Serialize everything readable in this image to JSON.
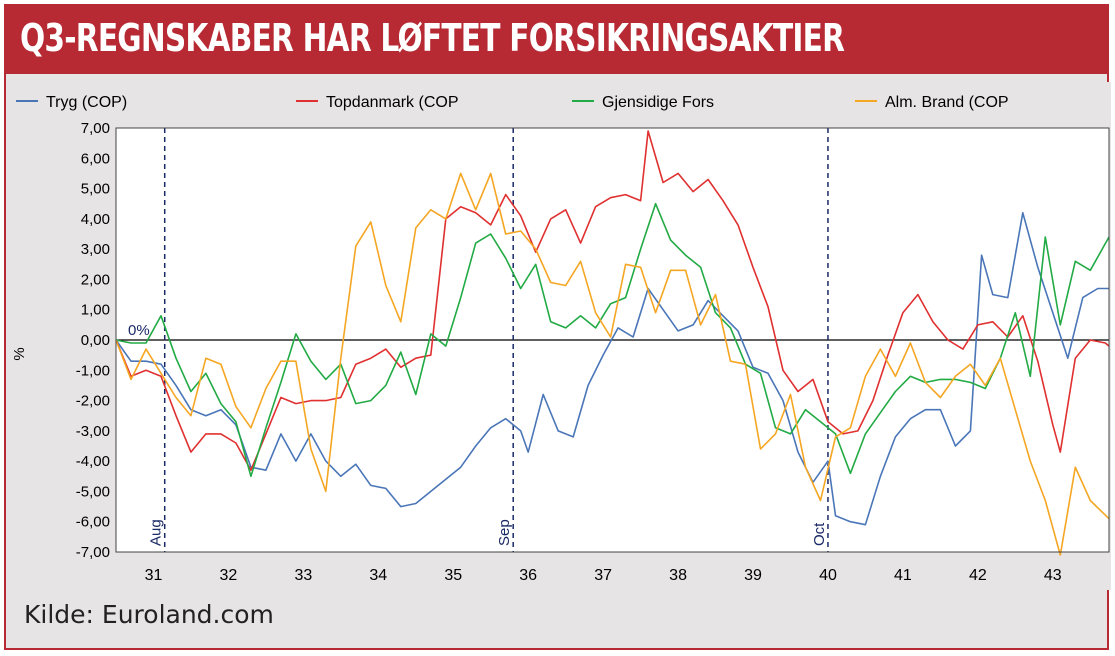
{
  "title": "Q3-REGNSKABER HAR LØFTET FORSIKRINGSAKTIER",
  "source": "Kilde: Euroland.com",
  "colors": {
    "brand": "#b72a33",
    "tryg": "#4a76b8",
    "topdanmark": "#e03030",
    "gjensidige": "#22aa44",
    "almbrand": "#f5a623"
  },
  "chart_data": {
    "type": "line",
    "title": "Q3-REGNSKABER HAR LØFTET FORSIKRINGSAKTIER",
    "ylabel": "%",
    "xlabel": "",
    "ylim": [
      -7,
      7
    ],
    "xlim": [
      30.5,
      43.75
    ],
    "yticks": [
      "7,00",
      "6,00",
      "5,00",
      "4,00",
      "3,00",
      "2,00",
      "1,00",
      "0,00",
      "-1,00",
      "-2,00",
      "-3,00",
      "-4,00",
      "-5,00",
      "-6,00",
      "-7,00"
    ],
    "xticks": [
      {
        "x": 31,
        "label": "31"
      },
      {
        "x": 32,
        "label": "32"
      },
      {
        "x": 33,
        "label": "33"
      },
      {
        "x": 34,
        "label": "34"
      },
      {
        "x": 35,
        "label": "35"
      },
      {
        "x": 36,
        "label": "36"
      },
      {
        "x": 37,
        "label": "37"
      },
      {
        "x": 38,
        "label": "38"
      },
      {
        "x": 39,
        "label": "39"
      },
      {
        "x": 40,
        "label": "40"
      },
      {
        "x": 41,
        "label": "41"
      },
      {
        "x": 42,
        "label": "42"
      },
      {
        "x": 43,
        "label": "43"
      }
    ],
    "month_markers": [
      {
        "x": 31.15,
        "label": "Aug"
      },
      {
        "x": 35.8,
        "label": "Sep"
      },
      {
        "x": 40.0,
        "label": "Oct"
      }
    ],
    "zero_label": "0%",
    "series": [
      {
        "name": "Tryg (COP)",
        "color": "#4a76b8",
        "points": [
          [
            30.5,
            0
          ],
          [
            30.7,
            -0.7
          ],
          [
            30.9,
            -0.7
          ],
          [
            31.1,
            -0.8
          ],
          [
            31.3,
            -1.5
          ],
          [
            31.5,
            -2.3
          ],
          [
            31.7,
            -2.5
          ],
          [
            31.9,
            -2.3
          ],
          [
            32.1,
            -2.8
          ],
          [
            32.3,
            -4.2
          ],
          [
            32.5,
            -4.3
          ],
          [
            32.7,
            -3.1
          ],
          [
            32.9,
            -4.0
          ],
          [
            33.1,
            -3.1
          ],
          [
            33.3,
            -4.0
          ],
          [
            33.5,
            -4.5
          ],
          [
            33.7,
            -4.1
          ],
          [
            33.9,
            -4.8
          ],
          [
            34.1,
            -4.9
          ],
          [
            34.3,
            -5.5
          ],
          [
            34.5,
            -5.4
          ],
          [
            34.7,
            -5.0
          ],
          [
            34.9,
            -4.6
          ],
          [
            35.1,
            -4.2
          ],
          [
            35.3,
            -3.5
          ],
          [
            35.5,
            -2.9
          ],
          [
            35.7,
            -2.6
          ],
          [
            35.9,
            -3.0
          ],
          [
            36.0,
            -3.7
          ],
          [
            36.2,
            -1.8
          ],
          [
            36.4,
            -3.0
          ],
          [
            36.6,
            -3.2
          ],
          [
            36.8,
            -1.5
          ],
          [
            37.0,
            -0.5
          ],
          [
            37.2,
            0.4
          ],
          [
            37.4,
            0.1
          ],
          [
            37.6,
            1.7
          ],
          [
            37.8,
            1.0
          ],
          [
            38.0,
            0.3
          ],
          [
            38.2,
            0.5
          ],
          [
            38.4,
            1.3
          ],
          [
            38.6,
            0.8
          ],
          [
            38.8,
            0.3
          ],
          [
            39.0,
            -0.9
          ],
          [
            39.2,
            -1.1
          ],
          [
            39.4,
            -2.0
          ],
          [
            39.6,
            -3.7
          ],
          [
            39.8,
            -4.7
          ],
          [
            40.0,
            -4.0
          ],
          [
            40.1,
            -5.8
          ],
          [
            40.3,
            -6.0
          ],
          [
            40.5,
            -6.1
          ],
          [
            40.7,
            -4.5
          ],
          [
            40.9,
            -3.2
          ],
          [
            41.1,
            -2.6
          ],
          [
            41.3,
            -2.3
          ],
          [
            41.5,
            -2.3
          ],
          [
            41.7,
            -3.5
          ],
          [
            41.9,
            -3.0
          ],
          [
            42.05,
            2.8
          ],
          [
            42.2,
            1.5
          ],
          [
            42.4,
            1.4
          ],
          [
            42.6,
            4.2
          ],
          [
            42.8,
            2.4
          ],
          [
            43.0,
            0.9
          ],
          [
            43.2,
            -0.6
          ],
          [
            43.4,
            1.4
          ],
          [
            43.6,
            1.7
          ],
          [
            43.75,
            1.7
          ]
        ]
      },
      {
        "name": "Topdanmark (COP",
        "color": "#e03030",
        "points": [
          [
            30.5,
            0
          ],
          [
            30.7,
            -1.2
          ],
          [
            30.9,
            -1.0
          ],
          [
            31.1,
            -1.2
          ],
          [
            31.3,
            -2.5
          ],
          [
            31.5,
            -3.7
          ],
          [
            31.7,
            -3.1
          ],
          [
            31.9,
            -3.1
          ],
          [
            32.1,
            -3.4
          ],
          [
            32.3,
            -4.3
          ],
          [
            32.5,
            -3.1
          ],
          [
            32.7,
            -1.9
          ],
          [
            32.9,
            -2.1
          ],
          [
            33.1,
            -2.0
          ],
          [
            33.3,
            -2.0
          ],
          [
            33.5,
            -1.9
          ],
          [
            33.7,
            -0.8
          ],
          [
            33.9,
            -0.6
          ],
          [
            34.1,
            -0.3
          ],
          [
            34.3,
            -0.9
          ],
          [
            34.5,
            -0.6
          ],
          [
            34.7,
            -0.5
          ],
          [
            34.9,
            4.0
          ],
          [
            35.1,
            4.4
          ],
          [
            35.3,
            4.2
          ],
          [
            35.5,
            3.8
          ],
          [
            35.7,
            4.8
          ],
          [
            35.9,
            4.1
          ],
          [
            36.1,
            2.9
          ],
          [
            36.3,
            4.0
          ],
          [
            36.5,
            4.3
          ],
          [
            36.7,
            3.2
          ],
          [
            36.9,
            4.4
          ],
          [
            37.1,
            4.7
          ],
          [
            37.3,
            4.8
          ],
          [
            37.5,
            4.6
          ],
          [
            37.6,
            6.9
          ],
          [
            37.8,
            5.2
          ],
          [
            38.0,
            5.5
          ],
          [
            38.2,
            4.9
          ],
          [
            38.4,
            5.3
          ],
          [
            38.6,
            4.6
          ],
          [
            38.8,
            3.8
          ],
          [
            39.0,
            2.4
          ],
          [
            39.2,
            1.1
          ],
          [
            39.4,
            -1.0
          ],
          [
            39.6,
            -1.7
          ],
          [
            39.8,
            -1.3
          ],
          [
            40.0,
            -2.7
          ],
          [
            40.2,
            -3.1
          ],
          [
            40.4,
            -3.0
          ],
          [
            40.6,
            -2.0
          ],
          [
            40.8,
            -0.5
          ],
          [
            41.0,
            0.9
          ],
          [
            41.2,
            1.5
          ],
          [
            41.4,
            0.6
          ],
          [
            41.6,
            0.0
          ],
          [
            41.8,
            -0.3
          ],
          [
            42.0,
            0.5
          ],
          [
            42.2,
            0.6
          ],
          [
            42.4,
            0.1
          ],
          [
            42.6,
            0.8
          ],
          [
            42.8,
            -0.7
          ],
          [
            43.0,
            -2.8
          ],
          [
            43.1,
            -3.7
          ],
          [
            43.3,
            -0.6
          ],
          [
            43.5,
            0.0
          ],
          [
            43.7,
            -0.1
          ],
          [
            43.75,
            -0.2
          ]
        ]
      },
      {
        "name": "Gjensidige Fors",
        "color": "#22aa44",
        "points": [
          [
            30.5,
            0
          ],
          [
            30.7,
            -0.1
          ],
          [
            30.9,
            -0.1
          ],
          [
            31.1,
            0.8
          ],
          [
            31.3,
            -0.6
          ],
          [
            31.5,
            -1.7
          ],
          [
            31.7,
            -1.1
          ],
          [
            31.9,
            -2.1
          ],
          [
            32.1,
            -2.7
          ],
          [
            32.3,
            -4.5
          ],
          [
            32.5,
            -2.9
          ],
          [
            32.7,
            -1.4
          ],
          [
            32.9,
            0.2
          ],
          [
            33.1,
            -0.7
          ],
          [
            33.3,
            -1.3
          ],
          [
            33.5,
            -0.8
          ],
          [
            33.7,
            -2.1
          ],
          [
            33.9,
            -2.0
          ],
          [
            34.1,
            -1.5
          ],
          [
            34.3,
            -0.4
          ],
          [
            34.5,
            -1.8
          ],
          [
            34.7,
            0.2
          ],
          [
            34.9,
            -0.2
          ],
          [
            35.1,
            1.4
          ],
          [
            35.3,
            3.2
          ],
          [
            35.5,
            3.5
          ],
          [
            35.7,
            2.7
          ],
          [
            35.9,
            1.7
          ],
          [
            36.1,
            2.5
          ],
          [
            36.3,
            0.6
          ],
          [
            36.5,
            0.4
          ],
          [
            36.7,
            0.8
          ],
          [
            36.9,
            0.4
          ],
          [
            37.1,
            1.2
          ],
          [
            37.3,
            1.4
          ],
          [
            37.5,
            3.0
          ],
          [
            37.7,
            4.5
          ],
          [
            37.9,
            3.3
          ],
          [
            38.1,
            2.8
          ],
          [
            38.3,
            2.4
          ],
          [
            38.5,
            0.9
          ],
          [
            38.7,
            0.4
          ],
          [
            38.9,
            -0.8
          ],
          [
            39.1,
            -1.1
          ],
          [
            39.3,
            -2.9
          ],
          [
            39.5,
            -3.1
          ],
          [
            39.7,
            -2.3
          ],
          [
            39.9,
            -2.7
          ],
          [
            40.1,
            -3.1
          ],
          [
            40.3,
            -4.4
          ],
          [
            40.5,
            -3.1
          ],
          [
            40.7,
            -2.4
          ],
          [
            40.9,
            -1.7
          ],
          [
            41.1,
            -1.2
          ],
          [
            41.3,
            -1.4
          ],
          [
            41.5,
            -1.3
          ],
          [
            41.7,
            -1.3
          ],
          [
            41.9,
            -1.4
          ],
          [
            42.1,
            -1.6
          ],
          [
            42.3,
            -0.6
          ],
          [
            42.5,
            0.9
          ],
          [
            42.7,
            -1.2
          ],
          [
            42.9,
            3.4
          ],
          [
            43.1,
            0.5
          ],
          [
            43.3,
            2.6
          ],
          [
            43.5,
            2.3
          ],
          [
            43.75,
            3.4
          ]
        ]
      },
      {
        "name": "Alm. Brand (COP",
        "color": "#f5a623",
        "points": [
          [
            30.5,
            0
          ],
          [
            30.7,
            -1.3
          ],
          [
            30.9,
            -0.3
          ],
          [
            31.1,
            -1.1
          ],
          [
            31.3,
            -1.9
          ],
          [
            31.5,
            -2.5
          ],
          [
            31.7,
            -0.6
          ],
          [
            31.9,
            -0.8
          ],
          [
            32.1,
            -2.2
          ],
          [
            32.3,
            -2.9
          ],
          [
            32.5,
            -1.6
          ],
          [
            32.7,
            -0.7
          ],
          [
            32.9,
            -0.7
          ],
          [
            33.1,
            -3.6
          ],
          [
            33.3,
            -5.0
          ],
          [
            33.5,
            -0.6
          ],
          [
            33.7,
            3.1
          ],
          [
            33.9,
            3.9
          ],
          [
            34.1,
            1.8
          ],
          [
            34.3,
            0.6
          ],
          [
            34.5,
            3.7
          ],
          [
            34.7,
            4.3
          ],
          [
            34.9,
            4.0
          ],
          [
            35.1,
            5.5
          ],
          [
            35.3,
            4.3
          ],
          [
            35.5,
            5.5
          ],
          [
            35.7,
            3.5
          ],
          [
            35.9,
            3.6
          ],
          [
            36.1,
            3.0
          ],
          [
            36.3,
            1.9
          ],
          [
            36.5,
            1.8
          ],
          [
            36.7,
            2.6
          ],
          [
            36.9,
            0.9
          ],
          [
            37.1,
            0.1
          ],
          [
            37.3,
            2.5
          ],
          [
            37.5,
            2.4
          ],
          [
            37.7,
            0.9
          ],
          [
            37.9,
            2.3
          ],
          [
            38.1,
            2.3
          ],
          [
            38.3,
            0.5
          ],
          [
            38.5,
            1.5
          ],
          [
            38.7,
            -0.7
          ],
          [
            38.9,
            -0.8
          ],
          [
            39.1,
            -3.6
          ],
          [
            39.3,
            -3.1
          ],
          [
            39.5,
            -1.8
          ],
          [
            39.7,
            -4.2
          ],
          [
            39.9,
            -5.3
          ],
          [
            40.1,
            -3.2
          ],
          [
            40.3,
            -2.9
          ],
          [
            40.5,
            -1.2
          ],
          [
            40.7,
            -0.3
          ],
          [
            40.9,
            -1.2
          ],
          [
            41.1,
            -0.1
          ],
          [
            41.3,
            -1.4
          ],
          [
            41.5,
            -1.9
          ],
          [
            41.7,
            -1.2
          ],
          [
            41.9,
            -0.8
          ],
          [
            42.1,
            -1.5
          ],
          [
            42.3,
            -0.6
          ],
          [
            42.5,
            -2.3
          ],
          [
            42.7,
            -4.0
          ],
          [
            42.9,
            -5.3
          ],
          [
            43.1,
            -7.1
          ],
          [
            43.3,
            -4.2
          ],
          [
            43.5,
            -5.3
          ],
          [
            43.75,
            -5.9
          ]
        ]
      }
    ]
  }
}
